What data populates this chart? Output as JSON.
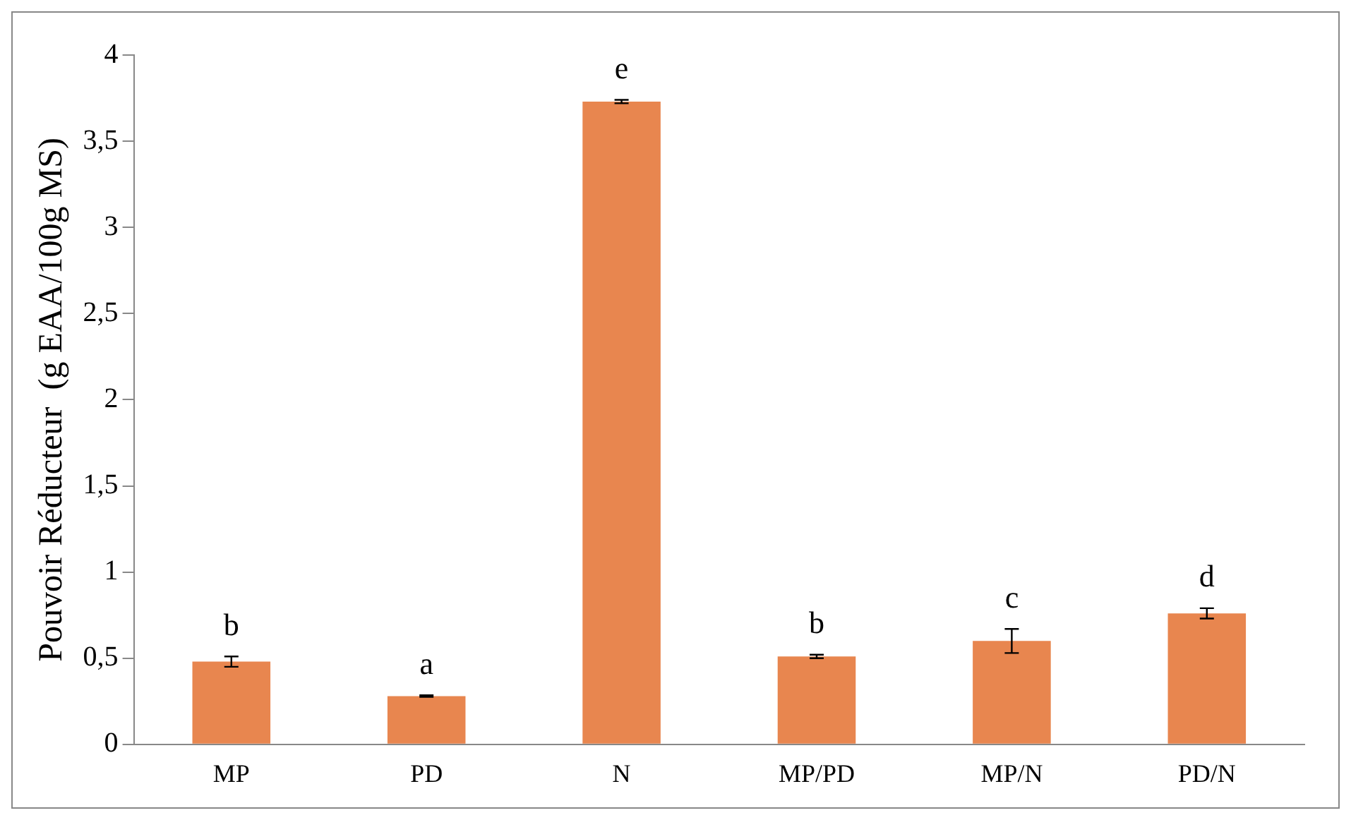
{
  "chart_data": {
    "type": "bar",
    "ylabel": "Pouvoir Réducteur  (g EAA/100g MS)",
    "categories": [
      "MP",
      "PD",
      "N",
      "MP/PD",
      "MP/N",
      "PD/N"
    ],
    "values": [
      0.48,
      0.28,
      3.73,
      0.51,
      0.6,
      0.76
    ],
    "errors": [
      0.03,
      0.005,
      0.01,
      0.01,
      0.07,
      0.03
    ],
    "color": "#e8864f",
    "ylim": [
      0,
      4
    ],
    "yticks": [
      0,
      {
        "value": 0.5,
        "label": "0,5"
      },
      1,
      {
        "value": 1.5,
        "label": "1,5"
      },
      2,
      {
        "value": 2.5,
        "label": "2,5"
      },
      3,
      {
        "value": 3.5,
        "label": "3,5"
      },
      4
    ],
    "grid": false,
    "annotations": [
      {
        "text": "b",
        "x": "MP",
        "y": 0.51
      },
      {
        "text": "a",
        "x": "PD",
        "y": 0.285
      },
      {
        "text": "e",
        "x": "N",
        "y": 3.74
      },
      {
        "text": "b",
        "x": "MP/PD",
        "y": 0.52
      },
      {
        "text": "c",
        "x": "MP/N",
        "y": 0.67
      },
      {
        "text": "d",
        "x": "PD/N",
        "y": 0.79
      }
    ]
  }
}
